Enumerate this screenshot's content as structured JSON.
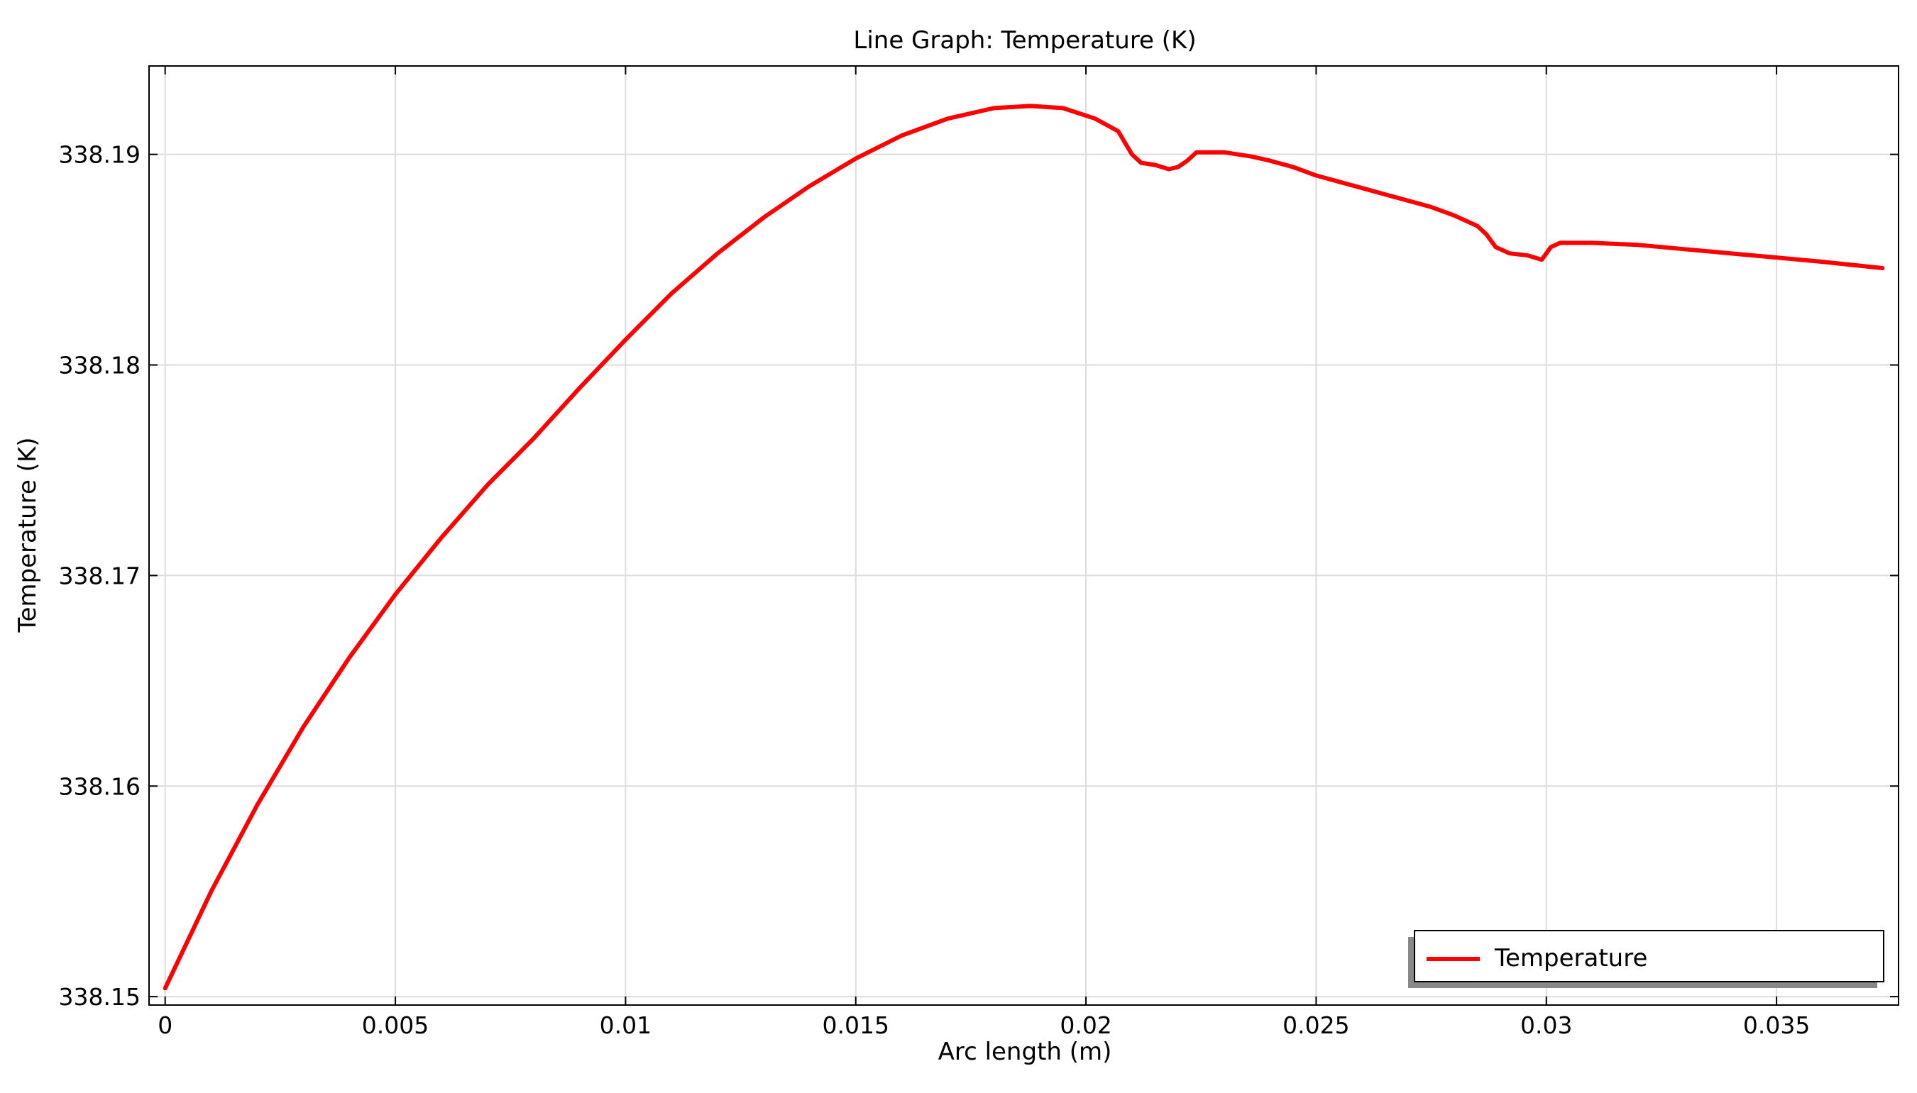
{
  "chart_data": {
    "type": "line",
    "title": "Line Graph: Temperature (K)",
    "xlabel": "Arc length (m)",
    "ylabel": "Temperature (K)",
    "xlim": [
      -0.00035,
      0.03765
    ],
    "ylim": [
      338.1496,
      338.1942
    ],
    "x_ticks": [
      0,
      0.005,
      0.01,
      0.015,
      0.02,
      0.025,
      0.03,
      0.035
    ],
    "x_tick_labels": [
      "0",
      "0.005",
      "0.01",
      "0.015",
      "0.02",
      "0.025",
      "0.03",
      "0.035"
    ],
    "y_ticks": [
      338.15,
      338.16,
      338.17,
      338.18,
      338.19
    ],
    "y_tick_labels": [
      "338.15",
      "338.16",
      "338.17",
      "338.18",
      "338.19"
    ],
    "grid": true,
    "legend_position": "bottom-right",
    "series": [
      {
        "name": "Temperature",
        "color": "#ff0000",
        "x": [
          0,
          0.001,
          0.002,
          0.003,
          0.004,
          0.005,
          0.006,
          0.007,
          0.008,
          0.009,
          0.01,
          0.011,
          0.012,
          0.013,
          0.014,
          0.015,
          0.016,
          0.017,
          0.018,
          0.0188,
          0.0195,
          0.0202,
          0.0207,
          0.021,
          0.0212,
          0.0215,
          0.0218,
          0.022,
          0.0222,
          0.0224,
          0.023,
          0.0236,
          0.024,
          0.0245,
          0.025,
          0.0255,
          0.026,
          0.0265,
          0.027,
          0.0275,
          0.028,
          0.0285,
          0.0287,
          0.0289,
          0.029,
          0.0292,
          0.0296,
          0.0299,
          0.0301,
          0.0303,
          0.0306,
          0.031,
          0.032,
          0.033,
          0.034,
          0.035,
          0.036,
          0.0373
        ],
        "y": [
          338.1504,
          338.155,
          338.1591,
          338.1628,
          338.1661,
          338.1691,
          338.1718,
          338.1743,
          338.1765,
          338.1789,
          338.1812,
          338.1834,
          338.1853,
          338.187,
          338.1885,
          338.1898,
          338.1909,
          338.1917,
          338.1922,
          338.1923,
          338.1922,
          338.1917,
          338.1911,
          338.19,
          338.1896,
          338.1895,
          338.1893,
          338.1894,
          338.1897,
          338.1901,
          338.1901,
          338.1899,
          338.1897,
          338.1894,
          338.189,
          338.1887,
          338.1884,
          338.1881,
          338.1878,
          338.1875,
          338.1871,
          338.1866,
          338.1862,
          338.1856,
          338.1855,
          338.1853,
          338.1852,
          338.185,
          338.1856,
          338.1858,
          338.1858,
          338.1858,
          338.1857,
          338.1855,
          338.1853,
          338.1851,
          338.1849,
          338.1846
        ]
      }
    ]
  }
}
